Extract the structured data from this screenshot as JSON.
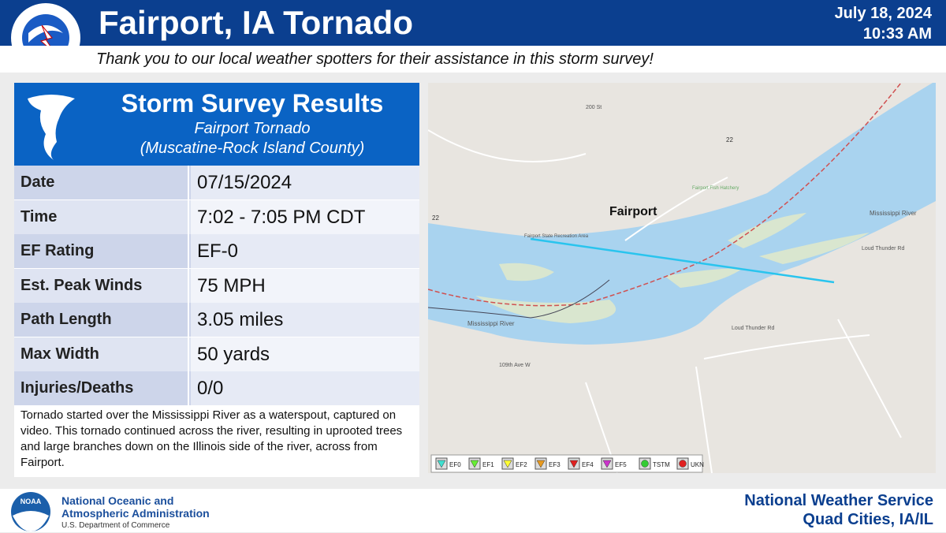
{
  "header": {
    "title": "Fairport, IA Tornado",
    "date": "July 18, 2024",
    "time": "10:33 AM",
    "subtitle": "Thank you to our local weather spotters for their assistance in this storm survey!"
  },
  "logo": {
    "text": "NATIONAL WEATHER SERVICE"
  },
  "panel": {
    "title": "Storm Survey Results",
    "subtitle": "Fairport Tornado",
    "location": "(Muscatine-Rock Island County)"
  },
  "table": {
    "rows": [
      [
        "Date",
        "07/15/2024"
      ],
      [
        "Time",
        "7:02 - 7:05 PM CDT"
      ],
      [
        "EF Rating",
        "EF-0"
      ],
      [
        "Est. Peak Winds",
        "75 MPH"
      ],
      [
        "Path Length",
        "3.05 miles"
      ],
      [
        "Max Width",
        "50 yards"
      ],
      [
        "Injuries/Deaths",
        "0/0"
      ]
    ]
  },
  "description": "Tornado started over the Mississippi River as a waterspout, captured on video. This tornado continued across the river, resulting in uprooted trees and large branches down on the Illinois side of the river, across from Fairport.",
  "map": {
    "labels": [
      "Fairport",
      "Mississippi River",
      "Mississippi River",
      "Loud Thunder Rd",
      "Loud Thunder Rd",
      "22",
      "22",
      "200 St",
      "Fairport State Recreation Area",
      "Fairport Fish Hatchery",
      "109th Ave W"
    ],
    "legend": [
      "EF0",
      "EF1",
      "EF2",
      "EF3",
      "EF4",
      "EF5",
      "TSTM",
      "UKN"
    ]
  },
  "footer": {
    "noaa": "NOAA",
    "noaa_line1": "National Oceanic and",
    "noaa_line2": "Atmospheric Administration",
    "noaa_line3": "U.S. Department of Commerce",
    "office": "National Weather Service",
    "office_location": "Quad Cities, IA/IL"
  }
}
